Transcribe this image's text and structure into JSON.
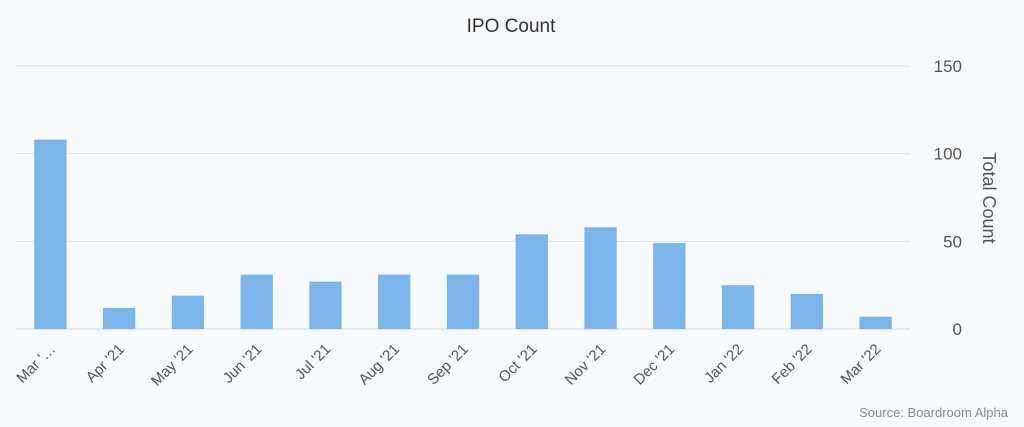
{
  "chart_data": {
    "type": "bar",
    "title": "IPO Count",
    "xlabel": "",
    "ylabel": "Total Count",
    "ylim": [
      0,
      150
    ],
    "yticks": [
      0,
      50,
      100,
      150
    ],
    "y_axis_side": "right",
    "grid": true,
    "legend": "none",
    "categories": [
      "Mar '…",
      "Apr '21",
      "May '21",
      "Jun '21",
      "Jul '21",
      "Aug '21",
      "Sep '21",
      "Oct '21",
      "Nov '21",
      "Dec '21",
      "Jan '22",
      "Feb '22",
      "Mar '22"
    ],
    "values": [
      108,
      12,
      19,
      31,
      27,
      31,
      31,
      54,
      58,
      49,
      25,
      20,
      7
    ],
    "bar_color": "#7cb5ec",
    "source": "Source: Boardroom Alpha"
  }
}
